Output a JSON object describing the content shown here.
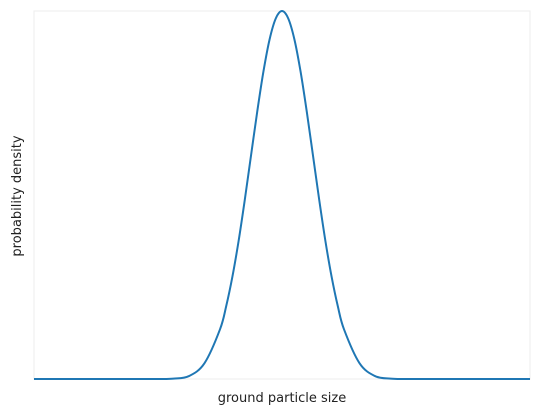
{
  "chart_data": {
    "type": "line",
    "title": "",
    "xlabel": "ground particle size",
    "ylabel": "probability density",
    "grid": false,
    "xlim": [
      -4,
      4
    ],
    "ylim": [
      0,
      1
    ],
    "series": [
      {
        "x": [
          -4.0,
          -3.5,
          -3.0,
          -2.5,
          -2.0,
          -1.75,
          -1.5,
          -1.25,
          -1.0,
          -0.9,
          -0.8,
          -0.7,
          -0.6,
          -0.5,
          -0.4,
          -0.3,
          -0.2,
          -0.1,
          0.0,
          0.1,
          0.2,
          0.3,
          0.4,
          0.5,
          0.6,
          0.7,
          0.8,
          0.9,
          1.0,
          1.25,
          1.5,
          1.75,
          2.0,
          2.5,
          3.0,
          3.5,
          4.0
        ],
        "values": [
          0,
          0,
          0,
          0,
          0,
          0.001,
          0.008,
          0.043,
          0.135,
          0.198,
          0.278,
          0.375,
          0.487,
          0.607,
          0.726,
          0.835,
          0.923,
          0.98,
          1.0,
          0.98,
          0.923,
          0.835,
          0.726,
          0.607,
          0.487,
          0.375,
          0.278,
          0.198,
          0.135,
          0.043,
          0.008,
          0.001,
          0,
          0,
          0,
          0,
          0
        ],
        "color": "#1f77b4"
      }
    ]
  }
}
